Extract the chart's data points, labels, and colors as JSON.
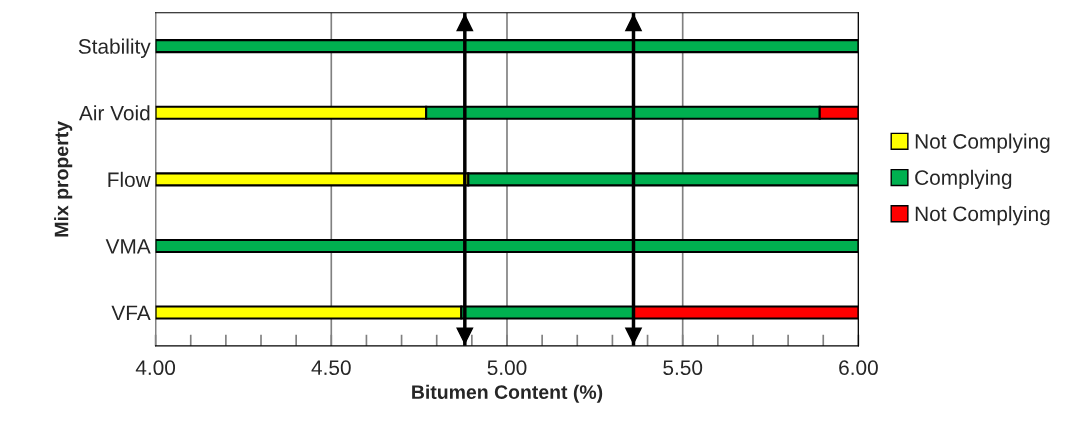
{
  "chart_data": {
    "type": "bar",
    "orientation": "horizontal",
    "categories": [
      "Stability",
      "Air Void",
      "Flow",
      "VMA",
      "VFA"
    ],
    "series": [
      {
        "name": "Not Complying",
        "color": "#ffff00",
        "base": [
          null,
          4.0,
          4.0,
          null,
          4.0
        ],
        "values": [
          null,
          0.77,
          0.89,
          null,
          0.87
        ]
      },
      {
        "name": "Complying",
        "color": "#00b050",
        "base": [
          4.0,
          4.77,
          4.89,
          4.0,
          4.87
        ],
        "values": [
          2.0,
          1.12,
          1.11,
          2.0,
          0.49
        ]
      },
      {
        "name": "Not Complying",
        "color": "#ff0000",
        "base": [
          null,
          5.89,
          null,
          null,
          5.36
        ],
        "values": [
          null,
          0.11,
          null,
          null,
          0.64
        ]
      }
    ],
    "xlabel": "Bitumen Content (%)",
    "ylabel": "Mix property",
    "xlim": [
      4.0,
      6.0
    ],
    "xticks": [
      {
        "value": 4.0,
        "label": "4.00"
      },
      {
        "value": 4.1,
        "label": null
      },
      {
        "value": 4.2,
        "label": null
      },
      {
        "value": 4.3,
        "label": null
      },
      {
        "value": 4.4,
        "label": null
      },
      {
        "value": 4.5,
        "label": "4.50"
      },
      {
        "value": 4.6,
        "label": null
      },
      {
        "value": 4.7,
        "label": null
      },
      {
        "value": 4.8,
        "label": null
      },
      {
        "value": 4.9,
        "label": null
      },
      {
        "value": 5.0,
        "label": "5.00"
      },
      {
        "value": 5.1,
        "label": null
      },
      {
        "value": 5.2,
        "label": null
      },
      {
        "value": 5.3,
        "label": null
      },
      {
        "value": 5.4,
        "label": null
      },
      {
        "value": 5.5,
        "label": "5.50"
      },
      {
        "value": 5.6,
        "label": null
      },
      {
        "value": 5.7,
        "label": null
      },
      {
        "value": 5.8,
        "label": null
      },
      {
        "value": 5.9,
        "label": null
      },
      {
        "value": 6.0,
        "label": "6.00"
      }
    ],
    "ref_lines": [
      {
        "axis": "x",
        "value": 4.88,
        "color": "#000000"
      },
      {
        "axis": "x",
        "value": 5.36,
        "color": "#000000"
      }
    ],
    "grid": "x",
    "legend": "right"
  }
}
